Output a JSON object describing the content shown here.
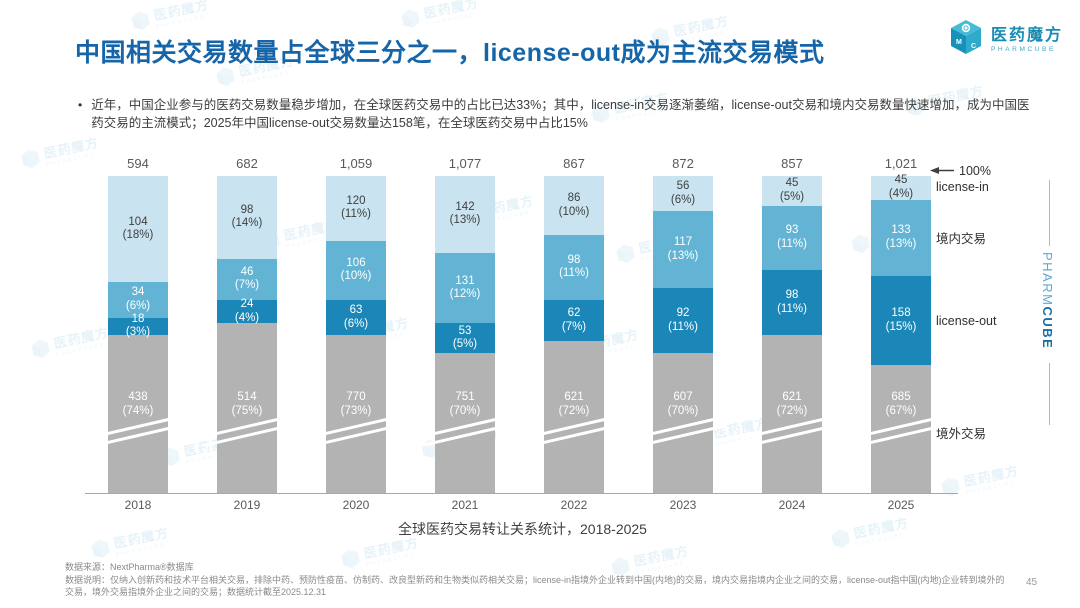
{
  "brand": {
    "name": "医药魔方",
    "sub": "PHARMCUBE"
  },
  "header": {
    "title": "中国相关交易数量占全球三分之一，license-out成为主流交易模式"
  },
  "bullet": "近年，中国企业参与的医药交易数量稳步增加，在全球医药交易中的占比已达33%；其中，license-in交易逐渐萎缩，license-out交易和境内交易数量快速增加，成为中国医药交易的主流模式；2025年中国license-out交易数量达158笔，在全球医药交易中占比15%",
  "chart_data": {
    "type": "bar",
    "subtype": "stacked-100-with-axis-break",
    "title": "全球医药交易转让关系统计，2018-2025",
    "categories": [
      "2018",
      "2019",
      "2020",
      "2021",
      "2022",
      "2023",
      "2024",
      "2025"
    ],
    "totals": [
      594,
      682,
      1059,
      1077,
      867,
      872,
      857,
      1021
    ],
    "series": [
      {
        "name": "license-in",
        "color": "#c9e4f0",
        "text_color": "#3f3f3f",
        "values": [
          104,
          98,
          120,
          142,
          86,
          56,
          45,
          45
        ],
        "pct": [
          18,
          14,
          11,
          13,
          10,
          6,
          5,
          4
        ]
      },
      {
        "name": "境内交易",
        "color": "#63b4d4",
        "text_color": "#ffffff",
        "values": [
          34,
          46,
          106,
          131,
          98,
          117,
          93,
          133
        ],
        "pct": [
          6,
          7,
          10,
          12,
          11,
          13,
          11,
          13
        ]
      },
      {
        "name": "license-out",
        "color": "#1b87b8",
        "text_color": "#ffffff",
        "values": [
          18,
          24,
          63,
          53,
          62,
          92,
          98,
          158
        ],
        "pct": [
          3,
          4,
          6,
          5,
          7,
          11,
          11,
          15
        ]
      },
      {
        "name": "境外交易",
        "color": "#b3b3b3",
        "text_color": "#ffffff",
        "values": [
          438,
          514,
          770,
          751,
          621,
          607,
          621,
          685
        ],
        "pct": [
          74,
          75,
          73,
          70,
          72,
          70,
          72,
          67
        ]
      }
    ],
    "legend_position": "right",
    "top_annotation": "100%",
    "axis_break": true,
    "grid": false
  },
  "legend": {
    "arrow_label": "100%",
    "items": [
      "license-in",
      "境内交易",
      "license-out",
      "境外交易"
    ]
  },
  "sidebar": {
    "pharm": "PHARM",
    "cube": "CUBE"
  },
  "footer": {
    "source": "数据来源：NextPharma®数据库",
    "note": "数据说明：仅纳入创新药和技术平台相关交易，排除中药、预防性疫苗、仿制药、改良型新药和生物类似药相关交易；license-in指境外企业转到中国(内地)的交易，境内交易指境内企业之间的交易，license-out指中国(内地)企业转到境外的交易，境外交易指境外企业之间的交易；数据统计截至2025.12.31",
    "page": "45"
  }
}
